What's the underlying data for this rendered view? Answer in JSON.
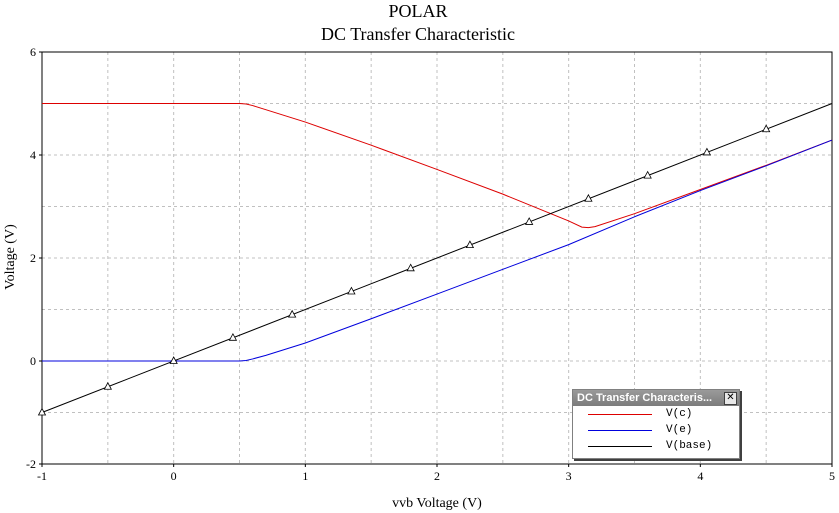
{
  "chart_data": {
    "type": "line",
    "title": "POLAR",
    "subtitle": "DC Transfer Characteristic",
    "xlabel": "vvb Voltage (V)",
    "ylabel": "Voltage (V)",
    "xlim": [
      -1,
      5
    ],
    "ylim": [
      -2,
      6
    ],
    "xticks": [
      "-1",
      "0",
      "1",
      "2",
      "3",
      "4",
      "5"
    ],
    "yticks": [
      "-2",
      "0",
      "2",
      "4",
      "6"
    ],
    "grid": true,
    "legend_position": "bottom-right",
    "series": [
      {
        "name": "V(c)",
        "color": "#dd0000",
        "x": [
          -1,
          0,
          0.5,
          0.55,
          0.6,
          0.7,
          1.0,
          1.5,
          2.0,
          2.5,
          3.0,
          3.1,
          3.15,
          3.2,
          3.5,
          4.0,
          4.5,
          5.0
        ],
        "y": [
          5.0,
          5.0,
          5.0,
          4.99,
          4.96,
          4.88,
          4.64,
          4.19,
          3.72,
          3.24,
          2.72,
          2.6,
          2.59,
          2.61,
          2.86,
          3.33,
          3.8,
          4.29
        ]
      },
      {
        "name": "V(e)",
        "color": "#0000dd",
        "x": [
          -1,
          0,
          0.5,
          0.55,
          0.6,
          0.7,
          1.0,
          1.5,
          2.0,
          2.5,
          3.0,
          3.5,
          4.0,
          4.5,
          5.0
        ],
        "y": [
          0.0,
          0.0,
          0.0,
          0.01,
          0.04,
          0.11,
          0.35,
          0.82,
          1.3,
          1.78,
          2.26,
          2.8,
          3.31,
          3.79,
          4.29
        ]
      },
      {
        "name": "V(base)",
        "color": "#000000",
        "marker": "triangle",
        "x": [
          -1,
          5
        ],
        "y": [
          -1,
          5
        ],
        "marker_x": [
          -1,
          -0.5,
          0,
          0.45,
          0.9,
          1.35,
          1.8,
          2.25,
          2.7,
          3.15,
          3.6,
          4.05,
          4.5
        ]
      }
    ]
  },
  "legend": {
    "title": "DC Transfer Characteris...",
    "close_glyph": "✕"
  }
}
